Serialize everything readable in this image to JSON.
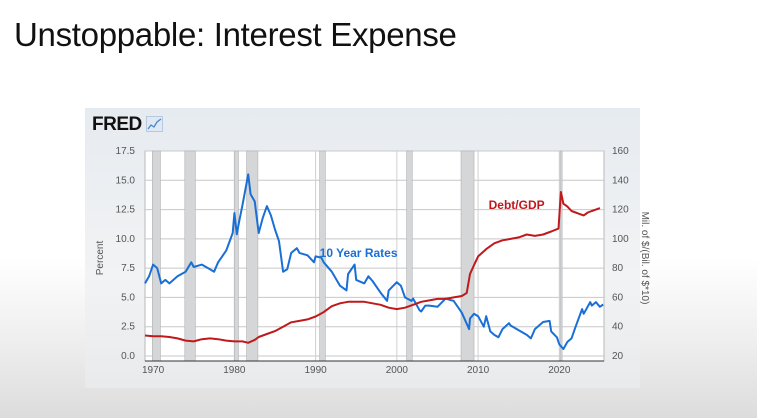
{
  "slide": {
    "title": "Unstoppable: Interest Expense"
  },
  "logo": {
    "text": "FRED",
    "icon": "line-chart-icon"
  },
  "chart_data": {
    "type": "line",
    "title": "",
    "xlim": [
      1969,
      2025.5
    ],
    "x_ticks": [
      1970,
      1980,
      1990,
      2000,
      2010,
      2020
    ],
    "left_axis": {
      "label": "Percent",
      "ylim": [
        0,
        17.5
      ],
      "ticks": [
        "0.0",
        "2.5",
        "5.0",
        "7.5",
        "10.0",
        "12.5",
        "15.0",
        "17.5"
      ]
    },
    "right_axis": {
      "label": "Mil. of $/(Bil. of $*10)",
      "ylim": [
        20,
        160
      ],
      "ticks": [
        "20",
        "40",
        "60",
        "80",
        "100",
        "120",
        "140",
        "160"
      ]
    },
    "grid": true,
    "recessions": [
      [
        1969.9,
        1970.9
      ],
      [
        1973.9,
        1975.2
      ],
      [
        1980.0,
        1980.5
      ],
      [
        1981.5,
        1982.9
      ],
      [
        1990.5,
        1991.2
      ],
      [
        2001.2,
        2001.9
      ],
      [
        2007.9,
        2009.5
      ],
      [
        2020.1,
        2020.3
      ]
    ],
    "series": [
      {
        "name": "10 Year Rates",
        "axis": "left",
        "color": "#1a6fd6",
        "x": [
          1969,
          1969.5,
          1970,
          1970.5,
          1971,
          1971.5,
          1972,
          1973,
          1974,
          1974.7,
          1975,
          1976,
          1977,
          1977.5,
          1978,
          1979,
          1979.8,
          1980,
          1980.3,
          1980.6,
          1981,
          1981.7,
          1982,
          1982.5,
          1983,
          1983.5,
          1984,
          1984.5,
          1985,
          1985.5,
          1986,
          1986.5,
          1987,
          1987.7,
          1988,
          1989,
          1989.8,
          1990,
          1990.7,
          1991,
          1992,
          1993,
          1993.8,
          1994,
          1994.8,
          1995,
          1996,
          1996.5,
          1997,
          1998,
          1998.8,
          1999,
          2000,
          2000.5,
          2001,
          2001.8,
          2002,
          2002.8,
          2003,
          2003.5,
          2004,
          2005,
          2006,
          2006.5,
          2007,
          2008,
          2008.9,
          2009,
          2009.5,
          2010,
          2010.7,
          2011,
          2011.5,
          2012,
          2012.5,
          2013,
          2013.8,
          2014,
          2015,
          2016,
          2016.5,
          2017,
          2018,
          2018.8,
          2019,
          2019.7,
          2020,
          2020.5,
          2021,
          2021.5,
          2022,
          2022.8,
          2023,
          2023.8,
          2024,
          2024.5,
          2025,
          2025.4
        ],
        "y": [
          6.2,
          6.8,
          7.8,
          7.5,
          6.2,
          6.5,
          6.2,
          6.8,
          7.2,
          8.0,
          7.6,
          7.8,
          7.4,
          7.2,
          8.0,
          9.0,
          10.5,
          12.2,
          10.4,
          11.5,
          12.9,
          15.5,
          13.8,
          13.2,
          10.5,
          11.8,
          12.8,
          12.0,
          10.8,
          9.8,
          7.2,
          7.4,
          8.8,
          9.2,
          8.8,
          8.6,
          8.0,
          8.5,
          8.4,
          8.0,
          7.2,
          6.0,
          5.6,
          7.0,
          7.8,
          6.5,
          6.2,
          6.8,
          6.4,
          5.4,
          4.7,
          5.6,
          6.3,
          6.0,
          5.0,
          4.7,
          4.9,
          3.9,
          3.8,
          4.3,
          4.3,
          4.2,
          4.9,
          4.8,
          4.7,
          3.7,
          2.3,
          3.2,
          3.6,
          3.4,
          2.5,
          3.4,
          2.1,
          1.8,
          1.6,
          2.3,
          2.8,
          2.6,
          2.2,
          1.8,
          1.5,
          2.3,
          2.9,
          3.0,
          2.1,
          1.6,
          1.0,
          0.6,
          1.2,
          1.5,
          2.5,
          4.0,
          3.6,
          4.6,
          4.3,
          4.6,
          4.2,
          4.4
        ]
      },
      {
        "name": "Debt/GDP",
        "axis": "right",
        "color": "#c0191c",
        "x": [
          1969,
          1970,
          1971,
          1972,
          1973,
          1974,
          1975,
          1976,
          1977,
          1978,
          1979,
          1980,
          1981,
          1981.7,
          1982.5,
          1983,
          1984,
          1985,
          1986,
          1987,
          1988,
          1989,
          1990,
          1991,
          1992,
          1993,
          1994,
          1995,
          1996,
          1997,
          1998,
          1999,
          2000,
          2001,
          2002,
          2003,
          2004,
          2005,
          2006,
          2007,
          2008,
          2008.6,
          2009,
          2009.5,
          2010,
          2011,
          2012,
          2013,
          2014,
          2015,
          2016,
          2017,
          2018,
          2019,
          2019.9,
          2020.2,
          2020.5,
          2021,
          2021.5,
          2022,
          2022.5,
          2023,
          2023.5,
          2024,
          2024.5,
          2025
        ],
        "y": [
          34,
          33.5,
          33.5,
          33,
          32,
          30.5,
          30,
          31.5,
          32,
          31.5,
          30.5,
          30,
          30,
          29,
          31,
          33,
          35,
          37,
          40,
          43,
          44,
          45,
          47,
          50,
          54,
          56,
          57,
          57,
          57,
          56,
          55,
          53,
          52,
          53,
          55,
          57,
          58,
          59,
          59,
          60,
          61,
          63,
          76,
          82,
          88,
          93,
          97,
          99,
          100,
          101,
          103,
          102,
          103,
          105,
          107,
          132,
          124,
          122,
          119,
          118,
          117,
          116,
          118,
          119,
          120,
          121
        ]
      }
    ],
    "annotations": [
      {
        "text": "10 Year Rates",
        "series": "10 Year Rates",
        "x": 1998,
        "y": 8.8
      },
      {
        "text": "Debt/GDP",
        "series": "Debt/GDP",
        "x": 2014,
        "y": 123
      }
    ]
  }
}
